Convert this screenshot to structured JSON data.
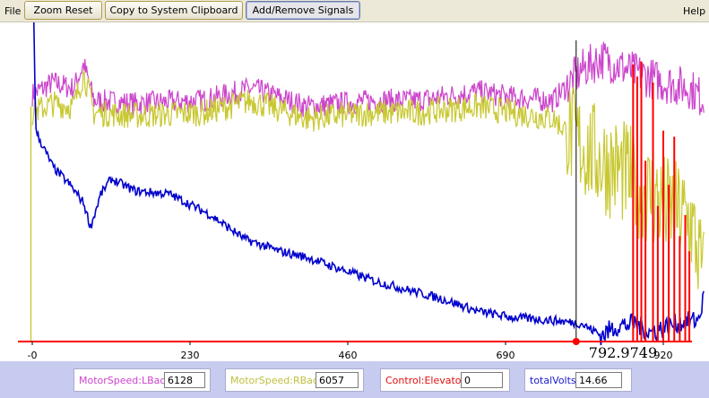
{
  "menubar": {
    "file_label": "File",
    "help_label": "Help",
    "buttons": {
      "zoom_reset": "Zoom Reset",
      "copy_clipboard": "Copy to System Clipboard",
      "add_remove": "Add/Remove Signals"
    }
  },
  "chart_data": {
    "type": "line",
    "x_ticks": [
      "-0",
      "230",
      "460",
      "690",
      "920"
    ],
    "xlim": [
      -5,
      980
    ],
    "cursor": {
      "x": 792.9749,
      "label": "792.9749"
    },
    "series": [
      {
        "name": "MotorSpeed:LBack",
        "color": "#cc44cc",
        "current_value": "6128"
      },
      {
        "name": "MotorSpeed:RBack",
        "color": "#c8c832",
        "current_value": "6057"
      },
      {
        "name": "Control:Elevator",
        "color": "#ff0000",
        "current_value": "0"
      },
      {
        "name": "totalVolts",
        "color": "#0000cc",
        "current_value": "14.66"
      }
    ],
    "approx_points": {
      "totalVolts": [
        [
          -5,
          14.0
        ],
        [
          0,
          13.9
        ],
        [
          5,
          7.0
        ],
        [
          15,
          6.5
        ],
        [
          30,
          5.8
        ],
        [
          55,
          5.2
        ],
        [
          75,
          4.6
        ],
        [
          85,
          3.8
        ],
        [
          100,
          4.9
        ],
        [
          115,
          5.4
        ],
        [
          150,
          5.0
        ],
        [
          200,
          4.9
        ],
        [
          260,
          4.2
        ],
        [
          310,
          3.4
        ],
        [
          360,
          3.0
        ],
        [
          400,
          2.8
        ],
        [
          450,
          2.4
        ],
        [
          500,
          2.0
        ],
        [
          550,
          1.7
        ],
        [
          600,
          1.4
        ],
        [
          650,
          1.0
        ],
        [
          700,
          0.8
        ],
        [
          760,
          0.7
        ],
        [
          800,
          0.6
        ],
        [
          830,
          0.2
        ],
        [
          850,
          0.5
        ],
        [
          880,
          0.6
        ],
        [
          900,
          0.3
        ],
        [
          940,
          0.6
        ],
        [
          970,
          0.7
        ],
        [
          980,
          1.5
        ]
      ],
      "MotorSpeed:LBack": [
        [
          0,
          8.2
        ],
        [
          30,
          8.6
        ],
        [
          60,
          8.4
        ],
        [
          75,
          9.2
        ],
        [
          90,
          8.0
        ],
        [
          150,
          7.9
        ],
        [
          250,
          8.0
        ],
        [
          320,
          8.4
        ],
        [
          400,
          7.8
        ],
        [
          500,
          8.0
        ],
        [
          560,
          8.0
        ],
        [
          650,
          8.3
        ],
        [
          700,
          8.1
        ],
        [
          760,
          8.0
        ],
        [
          800,
          9.0
        ],
        [
          830,
          9.4
        ],
        [
          870,
          9.0
        ],
        [
          920,
          8.6
        ],
        [
          960,
          8.4
        ],
        [
          980,
          8.0
        ]
      ],
      "MotorSpeed:RBack": [
        [
          0,
          7.6
        ],
        [
          30,
          7.9
        ],
        [
          60,
          7.8
        ],
        [
          75,
          8.9
        ],
        [
          90,
          7.6
        ],
        [
          150,
          7.5
        ],
        [
          250,
          7.6
        ],
        [
          320,
          8.0
        ],
        [
          400,
          7.4
        ],
        [
          500,
          7.6
        ],
        [
          560,
          7.6
        ],
        [
          650,
          7.8
        ],
        [
          700,
          7.6
        ],
        [
          760,
          7.4
        ],
        [
          800,
          6.5
        ],
        [
          830,
          6.0
        ],
        [
          870,
          5.5
        ],
        [
          920,
          4.5
        ],
        [
          960,
          4.0
        ],
        [
          980,
          2.0
        ]
      ]
    }
  },
  "footer": {
    "signals": [
      {
        "label": "MotorSpeed:LBack",
        "value": "6128",
        "color": "#cc44cc"
      },
      {
        "label": "MotorSpeed:RBack",
        "value": "6057",
        "color": "#bfbf3f"
      },
      {
        "label": "Control:Elevator",
        "value": "0",
        "color": "#e01010"
      },
      {
        "label": "totalVolts",
        "value": "14.66",
        "color": "#1a1acc"
      }
    ]
  }
}
